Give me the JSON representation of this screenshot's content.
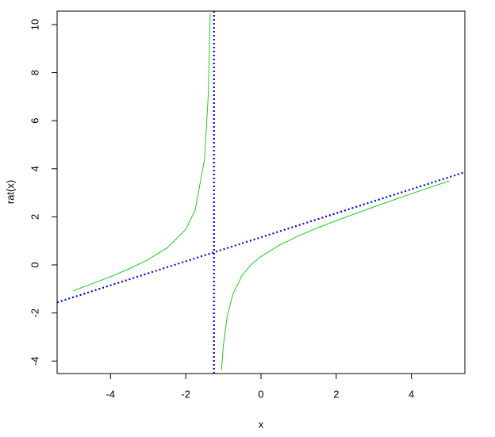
{
  "chart_data": {
    "type": "line",
    "x_label": "x",
    "y_label": "rat(x)",
    "xlim": [
      -5.42,
      5.42
    ],
    "ylim": [
      -4.52,
      10.56
    ],
    "xticks": [
      -4,
      -2,
      0,
      2,
      4
    ],
    "yticks": [
      -4,
      -2,
      0,
      2,
      4,
      6,
      8,
      10
    ],
    "grid": false,
    "series": [
      {
        "color": "#22cc22",
        "line_style": "solid",
        "x": [
          -5,
          -4.5,
          -4,
          -3.5,
          -3,
          -2.5,
          -2,
          -1.75,
          -1.5,
          -1.4,
          -1.35,
          -1.25,
          -1.05,
          -1,
          -0.9,
          -0.75,
          -0.5,
          -0.25,
          0,
          0.5,
          1,
          1.5,
          2,
          2.5,
          3,
          3.5,
          4,
          4.5,
          5
        ],
        "values": [
          -1.08,
          -0.79,
          -0.49,
          -0.16,
          0.22,
          0.7,
          1.48,
          2.28,
          4.4,
          7.12,
          10.48,
          null,
          -4.38,
          -3.35,
          -2.16,
          -1.23,
          -0.43,
          0.03,
          0.35,
          0.83,
          1.21,
          1.54,
          1.84,
          2.13,
          2.41,
          2.69,
          2.96,
          3.23,
          3.49
        ]
      },
      {
        "color": "#0000dd",
        "line_style": "dotted",
        "x": [
          -5.42,
          5.42
        ],
        "values": [
          -1.56,
          3.86
        ]
      },
      {
        "color": "#0000dd",
        "line_style": "dotted",
        "x": [
          -1.25,
          -1.25
        ],
        "values": [
          -4.52,
          10.56
        ]
      }
    ]
  }
}
